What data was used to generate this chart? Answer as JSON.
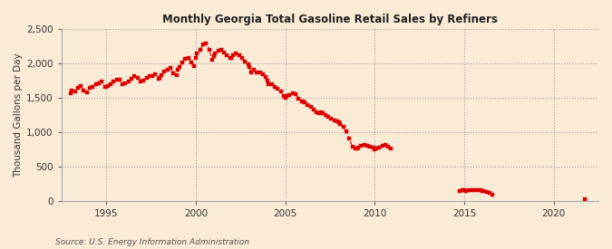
{
  "title": "Monthly Georgia Total Gasoline Retail Sales by Refiners",
  "ylabel": "Thousand Gallons per Day",
  "source": "Source: U.S. Energy Information Administration",
  "background_color": "#faebd7",
  "line_color": "#dd0000",
  "ylim": [
    0,
    2500
  ],
  "yticks": [
    0,
    500,
    1000,
    1500,
    2000,
    2500
  ],
  "xlim_start": 1992.5,
  "xlim_end": 2022.5,
  "xticks": [
    1995,
    2000,
    2005,
    2010,
    2015,
    2020
  ],
  "segments": [
    {
      "x": [
        1993.0,
        1993.08,
        1993.25,
        1993.42,
        1993.58,
        1993.75,
        1993.92
      ],
      "y": [
        1560,
        1610,
        1590,
        1640,
        1670,
        1610,
        1580
      ]
    },
    {
      "x": [
        1994.08,
        1994.25,
        1994.42,
        1994.58,
        1994.75,
        1994.92
      ],
      "y": [
        1640,
        1660,
        1700,
        1710,
        1730,
        1660
      ]
    },
    {
      "x": [
        1995.08,
        1995.25,
        1995.42,
        1995.58,
        1995.75,
        1995.92
      ],
      "y": [
        1670,
        1700,
        1730,
        1760,
        1760,
        1700
      ]
    },
    {
      "x": [
        1996.08,
        1996.25,
        1996.42,
        1996.58,
        1996.75,
        1996.92
      ],
      "y": [
        1710,
        1740,
        1770,
        1810,
        1790,
        1730
      ]
    },
    {
      "x": [
        1997.08,
        1997.25,
        1997.42,
        1997.58,
        1997.75,
        1997.92
      ],
      "y": [
        1750,
        1790,
        1810,
        1820,
        1840,
        1770
      ]
    },
    {
      "x": [
        1998.0,
        1998.08,
        1998.25,
        1998.42,
        1998.58,
        1998.75,
        1998.92
      ],
      "y": [
        1790,
        1830,
        1880,
        1910,
        1930,
        1860,
        1830
      ]
    },
    {
      "x": [
        1999.0,
        1999.08,
        1999.25,
        1999.42,
        1999.58,
        1999.75,
        1999.92
      ],
      "y": [
        1900,
        1950,
        2010,
        2060,
        2080,
        2010,
        1960
      ]
    },
    {
      "x": [
        2000.0,
        2000.08,
        2000.25,
        2000.42,
        2000.58,
        2000.75,
        2000.92
      ],
      "y": [
        2080,
        2140,
        2200,
        2270,
        2290,
        2200,
        2050
      ]
    },
    {
      "x": [
        2001.0,
        2001.08,
        2001.25,
        2001.42,
        2001.58,
        2001.75,
        2001.92
      ],
      "y": [
        2110,
        2140,
        2180,
        2200,
        2160,
        2120,
        2080
      ]
    },
    {
      "x": [
        2002.0,
        2002.08,
        2002.25,
        2002.42,
        2002.58,
        2002.75,
        2002.92
      ],
      "y": [
        2080,
        2120,
        2150,
        2120,
        2080,
        2030,
        1990
      ]
    },
    {
      "x": [
        2003.0,
        2003.08,
        2003.25,
        2003.42
      ],
      "y": [
        1940,
        1870,
        1900,
        1870
      ]
    },
    {
      "x": [
        2003.58,
        2003.75,
        2003.92
      ],
      "y": [
        1870,
        1840,
        1800
      ]
    },
    {
      "x": [
        2004.0,
        2004.08,
        2004.25,
        2004.42,
        2004.58,
        2004.75,
        2004.92
      ],
      "y": [
        1750,
        1700,
        1690,
        1660,
        1630,
        1590,
        1530
      ]
    },
    {
      "x": [
        2005.0,
        2005.08,
        2005.25,
        2005.42,
        2005.58,
        2005.75,
        2005.92
      ],
      "y": [
        1500,
        1520,
        1540,
        1560,
        1550,
        1490,
        1450
      ]
    },
    {
      "x": [
        2006.0,
        2006.08,
        2006.25,
        2006.42,
        2006.58,
        2006.75,
        2006.92
      ],
      "y": [
        1450,
        1430,
        1390,
        1360,
        1330,
        1290,
        1270
      ]
    },
    {
      "x": [
        2007.0,
        2007.08,
        2007.25,
        2007.42,
        2007.58,
        2007.75,
        2007.92
      ],
      "y": [
        1290,
        1270,
        1250,
        1220,
        1200,
        1170,
        1150
      ]
    },
    {
      "x": [
        2008.0,
        2008.08,
        2008.25,
        2008.42,
        2008.58,
        2008.75,
        2008.92
      ],
      "y": [
        1140,
        1110,
        1080,
        1010,
        900,
        790,
        760
      ]
    },
    {
      "x": [
        2009.0,
        2009.08,
        2009.25,
        2009.42,
        2009.58,
        2009.75,
        2009.92
      ],
      "y": [
        760,
        780,
        800,
        810,
        800,
        790,
        770
      ]
    },
    {
      "x": [
        2010.0,
        2010.08,
        2010.25,
        2010.42,
        2010.58,
        2010.75,
        2010.92
      ],
      "y": [
        750,
        760,
        780,
        800,
        810,
        790,
        760
      ]
    },
    {
      "x": [
        2014.75,
        2014.92,
        2015.0,
        2015.08,
        2015.25,
        2015.42,
        2015.58,
        2015.75,
        2015.92,
        2016.0,
        2016.08,
        2016.25,
        2016.42,
        2016.58
      ],
      "y": [
        145,
        150,
        148,
        142,
        148,
        155,
        158,
        152,
        148,
        140,
        135,
        125,
        110,
        95
      ]
    },
    {
      "x": [
        2021.75
      ],
      "y": [
        25
      ]
    }
  ]
}
